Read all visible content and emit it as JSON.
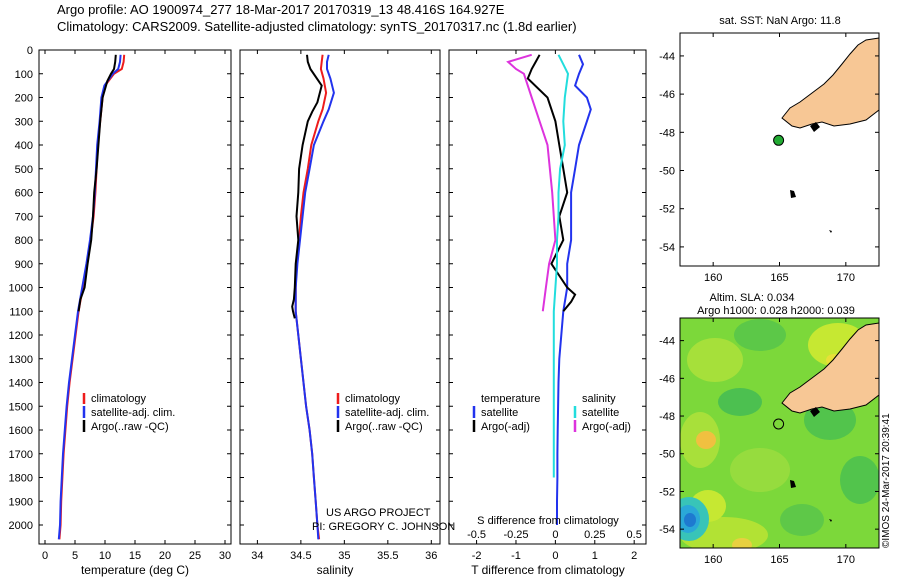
{
  "header": {
    "line1": "Argo profile: AO 1900974_277 18-Mar-2017 20170319_13 48.416S 164.927E",
    "line2": "Climatology: CARS2009. Satellite-adjusted climatology: synTS_20170317.nc (1.8d earlier)"
  },
  "colors": {
    "red": "#ee1c1c",
    "blue": "#2233ee",
    "black": "#000000",
    "cyan": "#22dddd",
    "magenta": "#dd33dd",
    "land": "#f7c795",
    "argo_marker": "#22aa33"
  },
  "credit": {
    "line1": "US ARGO PROJECT",
    "line2": "PI: GREGORY C. JOHNSON"
  },
  "chart_data": [
    {
      "id": "temperature",
      "type": "line",
      "xlabel": "temperature (deg C)",
      "xlim": [
        -1,
        31
      ],
      "ylim": [
        2080,
        0
      ],
      "xticks": [
        0,
        5,
        10,
        15,
        20,
        25,
        30
      ],
      "yticks": [
        0,
        100,
        200,
        300,
        400,
        500,
        600,
        700,
        800,
        900,
        1000,
        1100,
        1200,
        1300,
        1400,
        1500,
        1600,
        1700,
        1800,
        1900,
        2000
      ],
      "legend": [
        "climatology",
        "satellite-adj. clim.",
        "Argo(..raw -QC)"
      ],
      "series": [
        {
          "name": "climatology",
          "color": "red",
          "x": [
            13.2,
            13.1,
            12.8,
            11.5,
            10.0,
            9.6,
            9.2,
            8.8,
            8.6,
            8.4,
            8.1,
            7.6,
            7.0,
            6.3,
            5.6,
            5.1,
            4.6,
            4.1,
            3.7,
            3.4,
            3.1,
            2.9,
            2.7,
            2.6,
            2.4
          ],
          "y": [
            20,
            50,
            80,
            100,
            150,
            200,
            300,
            400,
            500,
            600,
            700,
            800,
            900,
            1000,
            1100,
            1200,
            1300,
            1400,
            1500,
            1600,
            1700,
            1800,
            1900,
            2000,
            2060
          ]
        },
        {
          "name": "satellite-adj. clim.",
          "color": "blue",
          "x": [
            12.6,
            12.5,
            12.2,
            11.3,
            9.9,
            9.4,
            9.1,
            8.7,
            8.5,
            8.3,
            8.0,
            7.5,
            6.9,
            6.2,
            5.5,
            5.0,
            4.5,
            4.0,
            3.6,
            3.3,
            3.0,
            2.8,
            2.6,
            2.5,
            2.3
          ],
          "y": [
            20,
            50,
            80,
            100,
            150,
            200,
            300,
            400,
            500,
            600,
            700,
            800,
            900,
            1000,
            1100,
            1200,
            1300,
            1400,
            1500,
            1600,
            1700,
            1800,
            1900,
            2000,
            2060
          ]
        },
        {
          "name": "Argo(..raw -QC)",
          "color": "black",
          "x": [
            11.8,
            11.7,
            11.5,
            11.0,
            10.4,
            9.6,
            9.2,
            8.9,
            8.6,
            8.2,
            8.0,
            7.7,
            7.1,
            6.6,
            5.9,
            5.6
          ],
          "y": [
            20,
            50,
            80,
            100,
            130,
            200,
            300,
            400,
            500,
            600,
            700,
            800,
            900,
            1000,
            1050,
            1100
          ]
        }
      ]
    },
    {
      "id": "salinity",
      "type": "line",
      "xlabel": "salinity",
      "xlim": [
        33.8,
        36.1
      ],
      "ylim": [
        2080,
        0
      ],
      "xticks": [
        34,
        34.5,
        35,
        35.5,
        36
      ],
      "legend": [
        "climatology",
        "satellite-adj. clim.",
        "Argo(..raw -QC)"
      ],
      "series": [
        {
          "name": "climatology",
          "color": "red",
          "x": [
            34.75,
            34.74,
            34.73,
            34.76,
            34.79,
            34.75,
            34.7,
            34.62,
            34.58,
            34.53,
            34.5,
            34.48,
            34.45,
            34.44,
            34.44,
            34.47,
            34.5,
            34.53,
            34.56,
            34.6,
            34.63,
            34.65,
            34.67,
            34.69,
            34.71
          ],
          "y": [
            20,
            50,
            80,
            120,
            180,
            250,
            300,
            400,
            500,
            600,
            700,
            800,
            900,
            1000,
            1100,
            1200,
            1300,
            1400,
            1500,
            1600,
            1700,
            1800,
            1900,
            2000,
            2060
          ]
        },
        {
          "name": "satellite-adj. clim.",
          "color": "blue",
          "x": [
            34.82,
            34.8,
            34.8,
            34.84,
            34.88,
            34.82,
            34.76,
            34.65,
            34.6,
            34.55,
            34.52,
            34.49,
            34.46,
            34.44,
            34.44,
            34.47,
            34.5,
            34.53,
            34.56,
            34.6,
            34.63,
            34.65,
            34.67,
            34.69,
            34.7
          ],
          "y": [
            20,
            50,
            80,
            120,
            180,
            250,
            300,
            400,
            500,
            600,
            700,
            800,
            900,
            1000,
            1100,
            1200,
            1300,
            1400,
            1500,
            1600,
            1700,
            1800,
            1900,
            2000,
            2060
          ]
        },
        {
          "name": "Argo(..raw -QC)",
          "color": "black",
          "x": [
            34.57,
            34.58,
            34.61,
            34.74,
            34.69,
            34.63,
            34.58,
            34.52,
            34.48,
            34.47,
            34.45,
            34.47,
            34.44,
            34.43,
            34.42,
            34.4,
            34.41,
            34.43
          ],
          "y": [
            20,
            50,
            80,
            150,
            220,
            260,
            300,
            400,
            500,
            600,
            700,
            800,
            900,
            1000,
            1050,
            1080,
            1100,
            1130
          ]
        }
      ]
    },
    {
      "id": "difference",
      "type": "line",
      "xlabel": "T difference from climatology",
      "xlabel_top": "S difference from climatology",
      "xlim": [
        -2.7,
        2.3
      ],
      "ylim": [
        2080,
        0
      ],
      "xticks": [
        -2,
        -1,
        0,
        1,
        2
      ],
      "xticks_top": [
        -0.5,
        -0.25,
        0,
        0.25,
        0.5
      ],
      "legend_groups": {
        "temperature": "temperature",
        "salinity": "salinity"
      },
      "legend": [
        "satellite",
        "Argo(-adj)",
        "satellite",
        "Argo(-adj)"
      ],
      "series": [
        {
          "name": "temperature satellite",
          "color": "blue",
          "x": [
            0.6,
            0.7,
            0.6,
            0.5,
            0.8,
            0.9,
            0.8,
            0.6,
            0.5,
            0.4,
            0.4,
            0.4,
            0.3,
            0.3,
            0.2,
            0.15,
            0.1,
            0.08,
            0.07,
            0.06,
            0.05,
            0.05,
            0.04,
            0.04
          ],
          "y": [
            20,
            60,
            100,
            150,
            200,
            250,
            300,
            400,
            500,
            600,
            700,
            800,
            900,
            1000,
            1100,
            1200,
            1300,
            1400,
            1500,
            1600,
            1700,
            1800,
            1900,
            2000
          ]
        },
        {
          "name": "temperature Argo(-adj)",
          "color": "black",
          "x": [
            -0.4,
            -0.5,
            -0.6,
            -0.7,
            -0.2,
            0.0,
            0.1,
            0.2,
            0.3,
            0.1,
            0.2,
            -0.1,
            0.3,
            0.5,
            0.4,
            0.2
          ],
          "y": [
            20,
            50,
            80,
            120,
            200,
            300,
            400,
            500,
            600,
            700,
            800,
            900,
            1000,
            1030,
            1060,
            1100
          ]
        },
        {
          "name": "salinity satellite",
          "color": "cyan",
          "x": [
            0.02,
            0.05,
            0.08,
            0.06,
            0.05,
            0.06,
            0.03,
            0.02,
            0.02,
            0.01,
            0.01,
            0.0,
            -0.01,
            -0.01,
            -0.01,
            -0.01,
            -0.01,
            -0.01,
            -0.01,
            -0.01
          ],
          "y": [
            20,
            60,
            100,
            200,
            300,
            400,
            500,
            600,
            700,
            800,
            900,
            1000,
            1100,
            1200,
            1300,
            1400,
            1500,
            1600,
            1700,
            1800
          ]
        },
        {
          "name": "salinity Argo(-adj)",
          "color": "magenta",
          "x": [
            -0.15,
            -0.3,
            -0.25,
            -0.2,
            -0.15,
            -0.1,
            -0.05,
            -0.02,
            0.0,
            -0.04,
            -0.06,
            -0.08
          ],
          "y": [
            20,
            50,
            80,
            100,
            200,
            300,
            400,
            600,
            800,
            900,
            1000,
            1100
          ]
        }
      ]
    },
    {
      "id": "sst_map",
      "type": "map",
      "title": "sat. SST: NaN Argo: 11.8",
      "xticks": [
        160,
        165,
        170
      ],
      "yticks": [
        -44,
        -46,
        -48,
        -50,
        -52,
        -54
      ],
      "xlim": [
        157.5,
        172.5
      ],
      "ylim": [
        -55,
        -42.8
      ],
      "argo_position": [
        164.93,
        -48.42
      ]
    },
    {
      "id": "sla_map",
      "type": "heatmap",
      "title_line1": "Altim. SLA: 0.034",
      "title_line2": "Argo h1000: 0.028 h2000: 0.039",
      "xticks": [
        160,
        165,
        170
      ],
      "yticks": [
        -44,
        -46,
        -48,
        -50,
        -52,
        -54
      ],
      "xlim": [
        157.5,
        172.5
      ],
      "ylim": [
        -55,
        -42.8
      ],
      "argo_position": [
        164.93,
        -48.42
      ],
      "timestamp": "©IMOS 24-Mar-2017 20:39:41"
    }
  ]
}
